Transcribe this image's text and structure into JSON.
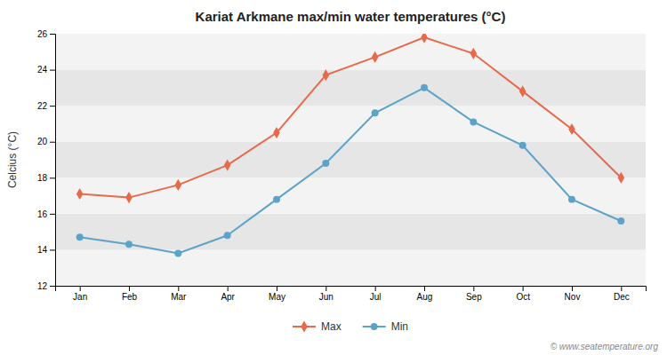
{
  "chart_data": {
    "type": "line",
    "title": "Kariat Arkmane max/min water temperatures (°C)",
    "categories": [
      "Jan",
      "Feb",
      "Mar",
      "Apr",
      "May",
      "Jun",
      "Jul",
      "Aug",
      "Sep",
      "Oct",
      "Nov",
      "Dec"
    ],
    "series": [
      {
        "name": "Max",
        "color": "#e8694a",
        "marker": "diamond",
        "values": [
          17.1,
          16.9,
          17.6,
          18.7,
          20.5,
          23.7,
          24.7,
          25.8,
          24.9,
          22.8,
          20.7,
          18.0
        ]
      },
      {
        "name": "Min",
        "color": "#5ba3c9",
        "marker": "circle",
        "values": [
          14.7,
          14.3,
          13.8,
          14.8,
          16.8,
          18.8,
          21.6,
          23.0,
          21.1,
          19.8,
          16.8,
          15.6
        ]
      }
    ],
    "y_label": "Celcius (°C)",
    "ylim": [
      12,
      26
    ],
    "yticks": [
      12,
      14,
      16,
      18,
      20,
      22,
      24,
      26
    ],
    "grid": true,
    "legend": "bottom",
    "annotations": [
      {
        "text": "© www.seatemperature.org"
      }
    ]
  }
}
